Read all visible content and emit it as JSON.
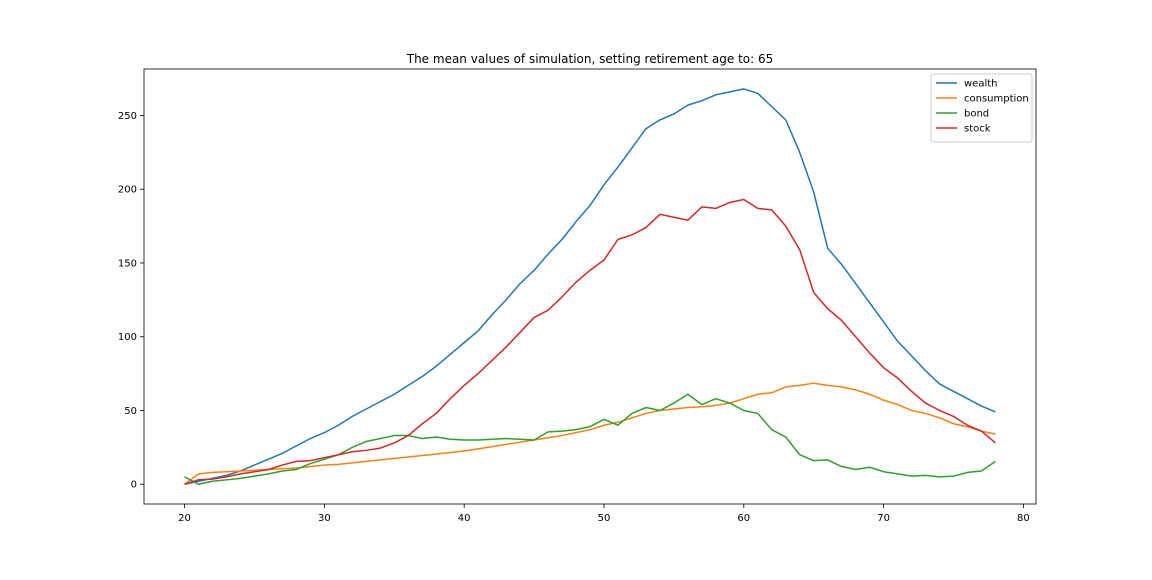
{
  "chart_data": {
    "type": "line",
    "title": "The mean values of simulation, setting retirement age to: 65",
    "xlabel": "",
    "ylabel": "",
    "xlim": [
      17.1,
      80.9
    ],
    "ylim": [
      -13.4,
      281.5
    ],
    "x_ticks": [
      20,
      30,
      40,
      50,
      60,
      70,
      80
    ],
    "x_tick_labels": [
      "20",
      "30",
      "40",
      "50",
      "60",
      "70",
      "80"
    ],
    "y_ticks": [
      0,
      50,
      100,
      150,
      200,
      250
    ],
    "y_tick_labels": [
      "0",
      "50",
      "100",
      "150",
      "200",
      "250"
    ],
    "grid": false,
    "legend_position": "top-right",
    "x": [
      20,
      21,
      22,
      23,
      24,
      25,
      26,
      27,
      28,
      29,
      30,
      31,
      32,
      33,
      34,
      35,
      36,
      37,
      38,
      39,
      40,
      41,
      42,
      43,
      44,
      45,
      46,
      47,
      48,
      49,
      50,
      51,
      52,
      53,
      54,
      55,
      56,
      57,
      58,
      59,
      60,
      61,
      62,
      63,
      64,
      65,
      66,
      67,
      68,
      69,
      70,
      71,
      72,
      73,
      74,
      75,
      76,
      77,
      78
    ],
    "series": [
      {
        "name": "wealth",
        "color": "#1f77b4",
        "values": [
          0,
          2,
          4,
          6,
          9,
          13,
          17,
          21,
          26,
          31,
          35,
          40,
          46,
          51,
          56,
          61,
          67,
          73,
          80,
          88,
          96,
          104,
          115,
          125,
          136,
          145,
          156,
          166,
          178,
          189,
          203,
          215,
          228,
          241,
          247,
          251,
          257,
          260,
          264,
          266,
          268,
          265,
          256,
          247,
          225,
          198,
          160,
          149,
          136,
          123,
          110,
          97,
          87,
          77,
          68,
          63,
          58,
          53,
          49
        ]
      },
      {
        "name": "consumption",
        "color": "#ff7f0e",
        "values": [
          0,
          7,
          8,
          8.5,
          9,
          9.5,
          10,
          10.5,
          11,
          12,
          13,
          13.5,
          14.5,
          15.5,
          16.5,
          17.5,
          18.5,
          19.5,
          20.5,
          21.5,
          22.5,
          24,
          25.5,
          27,
          28.5,
          30,
          31.5,
          33,
          35,
          37,
          40,
          42,
          45,
          48,
          50,
          51,
          52,
          52.5,
          53.5,
          55,
          58,
          61,
          62,
          66,
          67,
          68.5,
          67,
          66,
          64,
          61,
          57,
          54,
          50,
          48,
          45,
          41,
          39,
          36,
          34
        ]
      },
      {
        "name": "bond",
        "color": "#2ca02c",
        "values": [
          5,
          0,
          2,
          3,
          4,
          5.5,
          7,
          9,
          10,
          14,
          17,
          20,
          25,
          29,
          31,
          33,
          33,
          31,
          32,
          30.5,
          30,
          30,
          30.5,
          31,
          30.5,
          30,
          35.5,
          36,
          37,
          39,
          44,
          40,
          48,
          52,
          50,
          55,
          61,
          54,
          58,
          55,
          50,
          48,
          37,
          32,
          20,
          16,
          16.5,
          12,
          10,
          11.5,
          8.5,
          7,
          5.5,
          6,
          5,
          5.5,
          8,
          9,
          15.5
        ]
      },
      {
        "name": "stock",
        "color": "#d62728",
        "values": [
          0,
          3,
          3.5,
          5,
          7,
          8.5,
          10,
          13,
          15.5,
          16,
          18,
          20,
          22,
          23,
          24.5,
          28,
          33,
          41,
          48,
          58,
          67,
          75,
          84,
          93,
          103,
          113,
          118,
          127,
          137,
          145,
          152,
          166,
          169,
          174,
          183,
          181,
          179,
          188,
          187,
          191,
          193,
          187,
          186,
          175,
          159,
          130,
          119,
          111,
          100,
          89,
          79,
          72,
          63,
          55,
          50,
          46,
          40,
          36,
          28
        ]
      }
    ]
  }
}
